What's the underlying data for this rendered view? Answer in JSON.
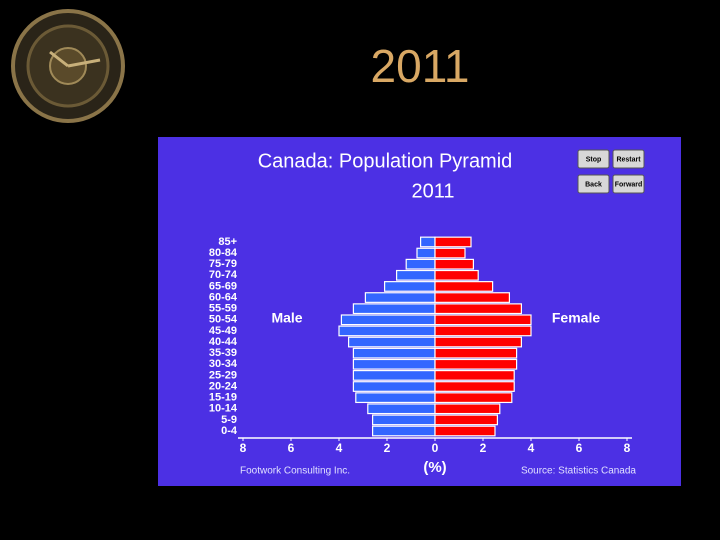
{
  "slide_title": "2011",
  "buttons": [
    "Stop",
    "Restart",
    "Back",
    "Forward"
  ],
  "chart_data": {
    "type": "pyramid",
    "title": "Canada: Population Pyramid",
    "subtitle": "2011",
    "xlabel": "(%)",
    "credit": "Footwork Consulting Inc.",
    "source": "Source: Statistics Canada",
    "categories": [
      "0-4",
      "5-9",
      "10-14",
      "15-19",
      "20-24",
      "25-29",
      "30-34",
      "35-39",
      "40-44",
      "45-49",
      "50-54",
      "55-59",
      "60-64",
      "65-69",
      "70-74",
      "75-79",
      "80-84",
      "85+"
    ],
    "series": [
      {
        "name": "Male",
        "color": "#3366ff",
        "side": "left",
        "values": [
          2.6,
          2.6,
          2.8,
          3.3,
          3.4,
          3.4,
          3.4,
          3.4,
          3.6,
          4.0,
          3.9,
          3.4,
          2.9,
          2.1,
          1.6,
          1.2,
          0.75,
          0.6
        ]
      },
      {
        "name": "Female",
        "color": "#ff0000",
        "side": "right",
        "values": [
          2.5,
          2.6,
          2.7,
          3.2,
          3.3,
          3.3,
          3.4,
          3.4,
          3.6,
          4.0,
          4.0,
          3.6,
          3.1,
          2.4,
          1.8,
          1.6,
          1.25,
          1.5
        ]
      }
    ],
    "xlim": [
      -8,
      8
    ],
    "xticks": [
      {
        "value": -8,
        "label": "8"
      },
      {
        "value": -6,
        "label": "6"
      },
      {
        "value": -4,
        "label": "4"
      },
      {
        "value": -2,
        "label": "2"
      },
      0,
      2,
      4,
      6,
      8
    ]
  }
}
